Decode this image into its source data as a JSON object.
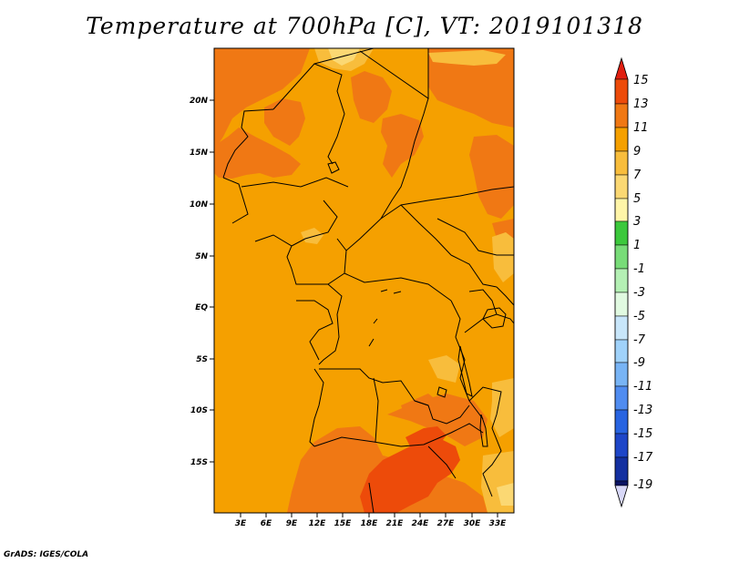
{
  "title": "Temperature at 700hPa [C], VT: 2019101318",
  "footer": "GrADS: IGES/COLA",
  "map": {
    "lat_labels": [
      "20N",
      "15N",
      "10N",
      "5N",
      "EQ",
      "5S",
      "10S",
      "15S"
    ],
    "lon_labels": [
      "3E",
      "6E",
      "9E",
      "12E",
      "15E",
      "18E",
      "21E",
      "24E",
      "27E",
      "30E",
      "33E"
    ],
    "colors": {
      "base": "#f5a000",
      "warm": "#f07814",
      "hot": "#ed4b0a",
      "light": "#f8bd3c",
      "pale": "#fbd873",
      "border": "#000000"
    }
  },
  "colorbar": {
    "labels": [
      "15",
      "13",
      "11",
      "9",
      "7",
      "5",
      "3",
      "1",
      "-1",
      "-3",
      "-5",
      "-7",
      "-9",
      "-11",
      "-13",
      "-15",
      "-17",
      "-19"
    ],
    "colors": [
      "#e11e0f",
      "#ed4b0a",
      "#f07814",
      "#f5a000",
      "#f8bd3c",
      "#fbd873",
      "#fff5a8",
      "#3cc83c",
      "#78dc78",
      "#b4f0b4",
      "#e1fae1",
      "#c8e6fa",
      "#a0d2fa",
      "#78b4f5",
      "#508cf0",
      "#2864e1",
      "#1e46c8",
      "#1430a0",
      "#0a1464",
      "#d8d8f8"
    ]
  }
}
